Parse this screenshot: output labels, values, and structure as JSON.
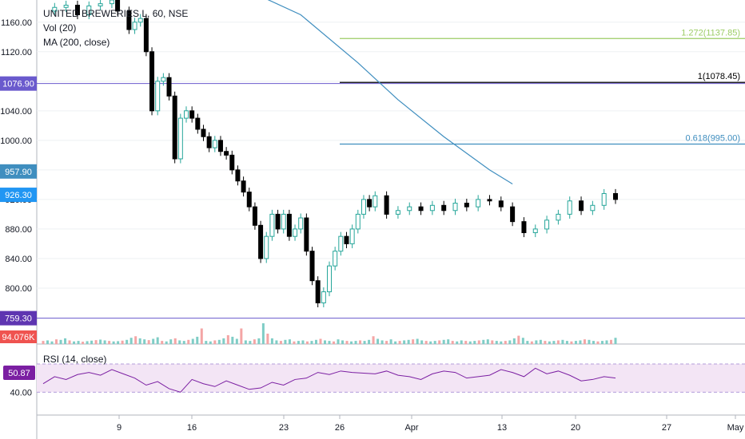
{
  "legend": {
    "symbol": "UNITED BREWERIES L, 60, NSE",
    "vol": "Vol (20)",
    "ma": "MA (200, close)",
    "rsi": "RSI (14, close)"
  },
  "colors": {
    "up": "#26a69a",
    "down": "#000000",
    "vol_up": "#7fcdc6",
    "vol_down": "#f4a5a5",
    "ma": "#3f8ebf",
    "rsi": "#7b1fa2",
    "rsi_band": "#f3e5f5",
    "h_purple": "#6a5acd",
    "fib_1272": "#9ccc65",
    "fib_1": "#000000",
    "fib_0618": "#3f8ebf"
  },
  "chart_data": [
    {
      "type": "candlestick",
      "title": "UNITED BREWERIES L, 60, NSE",
      "y_ticks": [
        "1160.00",
        "1120.00",
        "1080.00",
        "1040.00",
        "1000.00",
        "960.00",
        "920.00",
        "880.00",
        "840.00",
        "800.00"
      ],
      "ylim": [
        747,
        1190
      ],
      "x_ticks": [
        "9",
        "16",
        "23",
        "26",
        "Apr",
        "13",
        "20",
        "27",
        "May"
      ],
      "badges": [
        {
          "label": "1076.90",
          "value": 1076.9,
          "color": "#6a5acd"
        },
        {
          "label": "957.90",
          "value": 957.9,
          "color": "#3f8ebf"
        },
        {
          "label": "926.30",
          "value": 926.3,
          "color": "#2196f3"
        },
        {
          "label": "759.30",
          "value": 759.3,
          "color": "#5e35b1"
        }
      ],
      "horizontal_lines": [
        {
          "value": 1076.9
        },
        {
          "value": 759.3
        }
      ],
      "fib_levels": [
        {
          "label": "1.272(1137.85)",
          "value": 1137.85,
          "color": "#9ccc65"
        },
        {
          "label": "1(1078.45)",
          "value": 1078.45,
          "color": "#000000"
        },
        {
          "label": "0.618(995.00)",
          "value": 995.0,
          "color": "#3f8ebf"
        }
      ],
      "ma_200": [
        [
          0.38,
          1195
        ],
        [
          0.45,
          1170
        ],
        [
          0.55,
          1105
        ],
        [
          0.62,
          1055
        ],
        [
          0.7,
          1005
        ],
        [
          0.78,
          960
        ],
        [
          0.82,
          941
        ]
      ],
      "price_path": [
        [
          0.0,
          1175
        ],
        [
          0.02,
          1180
        ],
        [
          0.04,
          1183
        ],
        [
          0.06,
          1170
        ],
        [
          0.08,
          1182
        ],
        [
          0.1,
          1185
        ],
        [
          0.12,
          1190
        ],
        [
          0.13,
          1175
        ],
        [
          0.15,
          1150
        ],
        [
          0.16,
          1160
        ],
        [
          0.17,
          1165
        ],
        [
          0.18,
          1120
        ],
        [
          0.19,
          1040
        ],
        [
          0.2,
          1080
        ],
        [
          0.21,
          1085
        ],
        [
          0.22,
          1060
        ],
        [
          0.23,
          975
        ],
        [
          0.24,
          1030
        ],
        [
          0.25,
          1040
        ],
        [
          0.26,
          1030
        ],
        [
          0.27,
          1015
        ],
        [
          0.28,
          1005
        ],
        [
          0.29,
          990
        ],
        [
          0.3,
          1000
        ],
        [
          0.31,
          985
        ],
        [
          0.32,
          980
        ],
        [
          0.33,
          960
        ],
        [
          0.34,
          945
        ],
        [
          0.35,
          930
        ],
        [
          0.36,
          910
        ],
        [
          0.37,
          885
        ],
        [
          0.38,
          840
        ],
        [
          0.39,
          870
        ],
        [
          0.4,
          900
        ],
        [
          0.41,
          880
        ],
        [
          0.42,
          900
        ],
        [
          0.43,
          870
        ],
        [
          0.44,
          880
        ],
        [
          0.45,
          895
        ],
        [
          0.46,
          850
        ],
        [
          0.47,
          810
        ],
        [
          0.48,
          780
        ],
        [
          0.49,
          795
        ],
        [
          0.5,
          830
        ],
        [
          0.51,
          850
        ],
        [
          0.52,
          870
        ],
        [
          0.53,
          860
        ],
        [
          0.54,
          880
        ],
        [
          0.55,
          900
        ],
        [
          0.56,
          920
        ],
        [
          0.57,
          910
        ],
        [
          0.58,
          925
        ],
        [
          0.6,
          900
        ],
        [
          0.62,
          905
        ],
        [
          0.64,
          910
        ],
        [
          0.66,
          905
        ],
        [
          0.68,
          912
        ],
        [
          0.7,
          905
        ],
        [
          0.72,
          915
        ],
        [
          0.74,
          910
        ],
        [
          0.76,
          920
        ],
        [
          0.78,
          918
        ],
        [
          0.8,
          910
        ],
        [
          0.82,
          890
        ],
        [
          0.84,
          875
        ],
        [
          0.86,
          880
        ],
        [
          0.88,
          892
        ],
        [
          0.9,
          900
        ],
        [
          0.92,
          918
        ],
        [
          0.94,
          905
        ],
        [
          0.96,
          912
        ],
        [
          0.98,
          928
        ],
        [
          1.0,
          920
        ]
      ]
    },
    {
      "type": "bar",
      "title": "Vol (20)",
      "last_value_label": "94.076K",
      "values": [
        12,
        14,
        10,
        18,
        16,
        22,
        14,
        10,
        12,
        9,
        11,
        13,
        15,
        17,
        14,
        12,
        10,
        11,
        13,
        16,
        24,
        30,
        22,
        18,
        15,
        20,
        26,
        12,
        10,
        18,
        22,
        14,
        12,
        16,
        20,
        28,
        60,
        12,
        10,
        14,
        16,
        22,
        34,
        28,
        20,
        60,
        14,
        12,
        18,
        22,
        80,
        40,
        22,
        14,
        12,
        16,
        18,
        10,
        12,
        14,
        10,
        12,
        16,
        20,
        14,
        12,
        10,
        18,
        14,
        12,
        10,
        12,
        14,
        12,
        16,
        30,
        20,
        14,
        12,
        18,
        10,
        12,
        14,
        16,
        18,
        20,
        14,
        12,
        10,
        12,
        14,
        16,
        18,
        12,
        10,
        14,
        12,
        10,
        12,
        14,
        16,
        18,
        14,
        12,
        10,
        12,
        14,
        22,
        32,
        24,
        12,
        10,
        14,
        16,
        12,
        10,
        12,
        14,
        16,
        12,
        10,
        12,
        14,
        18,
        16,
        12,
        10,
        12,
        14,
        16,
        24
      ]
    },
    {
      "type": "line",
      "title": "RSI (14, close)",
      "last_value_label": "50.87",
      "y_ticks": [
        "40.00"
      ],
      "ylim": [
        25,
        70
      ],
      "band": [
        30,
        70
      ],
      "x": [
        0.0,
        0.02,
        0.04,
        0.06,
        0.08,
        0.1,
        0.12,
        0.14,
        0.16,
        0.18,
        0.2,
        0.22,
        0.24,
        0.26,
        0.28,
        0.3,
        0.32,
        0.34,
        0.36,
        0.38,
        0.4,
        0.42,
        0.44,
        0.46,
        0.48,
        0.5,
        0.52,
        0.54,
        0.56,
        0.58,
        0.6,
        0.62,
        0.64,
        0.66,
        0.68,
        0.7,
        0.72,
        0.74,
        0.76,
        0.78,
        0.8,
        0.82,
        0.84,
        0.86,
        0.88,
        0.9,
        0.92,
        0.94,
        0.96,
        0.98,
        1.0
      ],
      "values": [
        42,
        52,
        48,
        55,
        58,
        54,
        62,
        56,
        50,
        40,
        45,
        35,
        30,
        48,
        42,
        38,
        46,
        40,
        34,
        36,
        44,
        40,
        48,
        50,
        58,
        55,
        60,
        58,
        57,
        56,
        60,
        54,
        52,
        48,
        56,
        60,
        58,
        50,
        52,
        54,
        62,
        58,
        52,
        64,
        56,
        60,
        54,
        46,
        48,
        52,
        50
      ]
    }
  ]
}
